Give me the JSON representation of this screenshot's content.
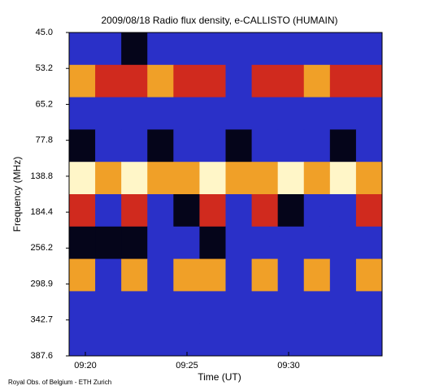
{
  "chart_data": {
    "type": "heatmap",
    "title": "2009/08/18  Radio flux density, e-CALLISTO (HUMAIN)",
    "x_label": "Time (UT)",
    "y_label": "Frequency (MHz)",
    "footer": "Royal Obs. of Belgium - ETH Zurich",
    "xlim": [
      19.2,
      34.6
    ],
    "xticks": [
      {
        "value": 20,
        "label": "09:20"
      },
      {
        "value": 25,
        "label": "09:25"
      },
      {
        "value": 30,
        "label": "09:30"
      }
    ],
    "y_tick_labels": [
      "45.0",
      "53.2",
      "65.2",
      "77.8",
      "138.8",
      "184.4",
      "256.2",
      "298.9",
      "342.7",
      "387.6"
    ],
    "colorscale": [
      "#05051a",
      "#2a30c8",
      "#d02a1e",
      "#f0a028",
      "#fff6c8"
    ],
    "z": [
      [
        1,
        1,
        0,
        1,
        1,
        1,
        1,
        1,
        1,
        1,
        1,
        1
      ],
      [
        3,
        2,
        2,
        3,
        2,
        2,
        1,
        2,
        2,
        3,
        2,
        2
      ],
      [
        1,
        1,
        1,
        1,
        1,
        1,
        1,
        1,
        1,
        1,
        1,
        1
      ],
      [
        0,
        1,
        1,
        0,
        1,
        1,
        0,
        1,
        1,
        1,
        0,
        1
      ],
      [
        4,
        3,
        4,
        3,
        3,
        4,
        3,
        3,
        4,
        3,
        4,
        3
      ],
      [
        2,
        1,
        2,
        1,
        0,
        2,
        1,
        2,
        0,
        1,
        1,
        2
      ],
      [
        0,
        0,
        0,
        1,
        1,
        0,
        1,
        1,
        1,
        1,
        1,
        1
      ],
      [
        3,
        1,
        3,
        1,
        3,
        3,
        1,
        3,
        1,
        3,
        1,
        3
      ],
      [
        1,
        1,
        1,
        1,
        1,
        1,
        1,
        1,
        1,
        1,
        1,
        1
      ],
      [
        1,
        1,
        1,
        1,
        1,
        1,
        1,
        1,
        1,
        1,
        1,
        1
      ]
    ]
  }
}
